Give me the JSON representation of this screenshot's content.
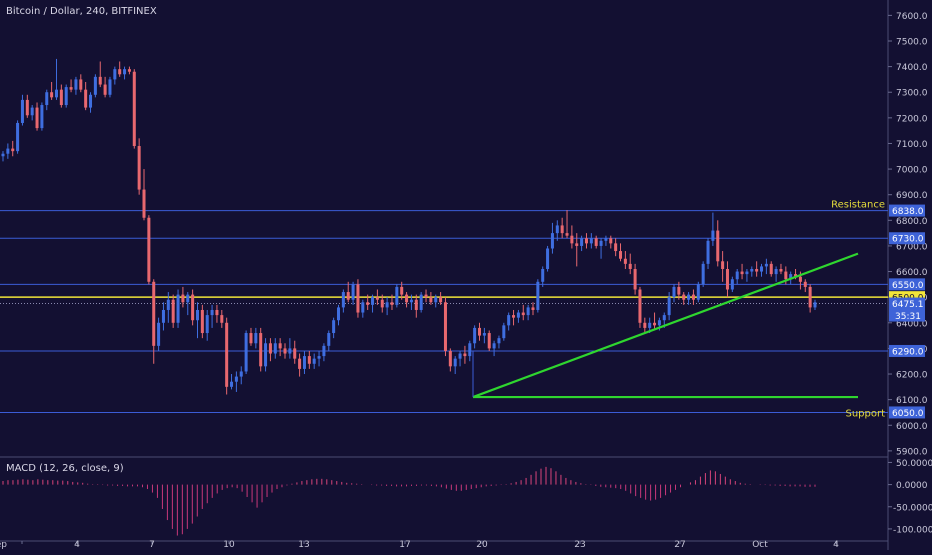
{
  "header": {
    "title": "Bitcoin / Dollar, 240, BITFINEX"
  },
  "macd": {
    "title": "MACD (12, 26, close, 9)"
  },
  "colors": {
    "background": "#131032",
    "grid_line": "#3b5cd6",
    "up": "#3f6ee0",
    "down": "#e8686f",
    "current_price_line": "#f2e53a",
    "trendline": "#2fd62f",
    "annotation_text": "#e6dd3c",
    "price_label_bg": "#3e63d8",
    "macd_pos": "#d8447a",
    "macd_neg": "#c8387a"
  },
  "chart_data": [
    {
      "type": "candlestick",
      "series": [
        {
          "name": "Bitcoin / Dollar"
        }
      ],
      "x_ticks": [
        "ep",
        "4",
        "7",
        "10",
        "13",
        "17",
        "20",
        "23",
        "27",
        "Oct",
        "4"
      ],
      "y_ticks": [
        "7600.0",
        "7500.0",
        "7400.0",
        "7300.0",
        "7200.0",
        "7100.0",
        "7000.0",
        "6900.0",
        "6800.0",
        "6700.0",
        "6600.0",
        "6500.0",
        "6400.0",
        "6300.0",
        "6200.0",
        "6100.0",
        "6000.0",
        "5900.0"
      ],
      "ylim": [
        5880,
        7660
      ],
      "horizontal_levels": [
        {
          "value": 6838.0,
          "label": "6838.0",
          "note": "Resistance"
        },
        {
          "value": 6730.0,
          "label": "6730.0"
        },
        {
          "value": 6550.0,
          "label": "6550.0"
        },
        {
          "value": 6290.0,
          "label": "6290.0"
        },
        {
          "value": 6050.0,
          "label": "6050.0",
          "note": "Support"
        }
      ],
      "highlight_level": {
        "value": 6500.0,
        "label": "6500.0"
      },
      "current_price": {
        "value": 6475.1,
        "label": "6475.1",
        "countdown": "35:31"
      },
      "trendlines": [
        {
          "from": [
            "Sep 19",
            6110
          ],
          "to": [
            "Oct 3",
            6670
          ]
        },
        {
          "from": [
            "Sep 19",
            6110
          ],
          "to": [
            "Oct 3",
            6110
          ]
        }
      ],
      "candles": [
        [
          7050,
          7070,
          7030,
          7060
        ],
        [
          7060,
          7100,
          7040,
          7080
        ],
        [
          7080,
          7110,
          7050,
          7070
        ],
        [
          7070,
          7190,
          7060,
          7180
        ],
        [
          7180,
          7290,
          7170,
          7270
        ],
        [
          7270,
          7290,
          7200,
          7210
        ],
        [
          7210,
          7250,
          7190,
          7240
        ],
        [
          7240,
          7260,
          7150,
          7160
        ],
        [
          7160,
          7260,
          7150,
          7250
        ],
        [
          7250,
          7310,
          7230,
          7300
        ],
        [
          7300,
          7340,
          7270,
          7280
        ],
        [
          7280,
          7430,
          7270,
          7310
        ],
        [
          7310,
          7330,
          7240,
          7250
        ],
        [
          7250,
          7330,
          7240,
          7320
        ],
        [
          7320,
          7350,
          7300,
          7310
        ],
        [
          7310,
          7360,
          7290,
          7350
        ],
        [
          7350,
          7370,
          7300,
          7310
        ],
        [
          7310,
          7340,
          7230,
          7240
        ],
        [
          7240,
          7300,
          7220,
          7290
        ],
        [
          7290,
          7370,
          7280,
          7360
        ],
        [
          7360,
          7420,
          7320,
          7330
        ],
        [
          7330,
          7360,
          7280,
          7290
        ],
        [
          7290,
          7360,
          7280,
          7350
        ],
        [
          7350,
          7400,
          7330,
          7390
        ],
        [
          7390,
          7420,
          7360,
          7370
        ],
        [
          7370,
          7400,
          7350,
          7390
        ],
        [
          7390,
          7400,
          7370,
          7380
        ],
        [
          7380,
          7390,
          7080,
          7090
        ],
        [
          7090,
          7120,
          6900,
          6920
        ],
        [
          6920,
          7000,
          6800,
          6810
        ],
        [
          6810,
          6820,
          6550,
          6560
        ],
        [
          6560,
          6570,
          6240,
          6310
        ],
        [
          6310,
          6420,
          6290,
          6400
        ],
        [
          6400,
          6480,
          6370,
          6450
        ],
        [
          6450,
          6520,
          6400,
          6490
        ],
        [
          6490,
          6510,
          6380,
          6400
        ],
        [
          6400,
          6530,
          6380,
          6510
        ],
        [
          6510,
          6540,
          6460,
          6480
        ],
        [
          6480,
          6520,
          6430,
          6510
        ],
        [
          6510,
          6530,
          6390,
          6410
        ],
        [
          6410,
          6480,
          6340,
          6450
        ],
        [
          6450,
          6470,
          6340,
          6360
        ],
        [
          6360,
          6450,
          6330,
          6430
        ],
        [
          6430,
          6470,
          6380,
          6450
        ],
        [
          6450,
          6470,
          6400,
          6430
        ],
        [
          6430,
          6450,
          6380,
          6400
        ],
        [
          6400,
          6420,
          6120,
          6150
        ],
        [
          6150,
          6200,
          6140,
          6170
        ],
        [
          6170,
          6210,
          6130,
          6190
        ],
        [
          6190,
          6230,
          6160,
          6210
        ],
        [
          6210,
          6370,
          6200,
          6360
        ],
        [
          6360,
          6380,
          6310,
          6320
        ],
        [
          6320,
          6380,
          6300,
          6360
        ],
        [
          6360,
          6380,
          6210,
          6230
        ],
        [
          6230,
          6340,
          6210,
          6320
        ],
        [
          6320,
          6340,
          6250,
          6280
        ],
        [
          6280,
          6340,
          6260,
          6320
        ],
        [
          6320,
          6340,
          6270,
          6300
        ],
        [
          6300,
          6320,
          6260,
          6280
        ],
        [
          6280,
          6340,
          6260,
          6300
        ],
        [
          6300,
          6330,
          6240,
          6260
        ],
        [
          6260,
          6280,
          6190,
          6220
        ],
        [
          6220,
          6290,
          6200,
          6270
        ],
        [
          6270,
          6290,
          6220,
          6240
        ],
        [
          6240,
          6280,
          6220,
          6260
        ],
        [
          6260,
          6290,
          6230,
          6270
        ],
        [
          6270,
          6320,
          6250,
          6310
        ],
        [
          6310,
          6370,
          6290,
          6360
        ],
        [
          6360,
          6420,
          6340,
          6410
        ],
        [
          6410,
          6470,
          6390,
          6460
        ],
        [
          6460,
          6530,
          6440,
          6520
        ],
        [
          6520,
          6560,
          6480,
          6490
        ],
        [
          6490,
          6560,
          6470,
          6550
        ],
        [
          6550,
          6570,
          6420,
          6440
        ],
        [
          6440,
          6490,
          6420,
          6480
        ],
        [
          6480,
          6510,
          6450,
          6470
        ],
        [
          6470,
          6510,
          6440,
          6500
        ],
        [
          6500,
          6530,
          6470,
          6490
        ],
        [
          6490,
          6510,
          6440,
          6460
        ],
        [
          6460,
          6500,
          6430,
          6480
        ],
        [
          6480,
          6510,
          6450,
          6470
        ],
        [
          6470,
          6550,
          6460,
          6540
        ],
        [
          6540,
          6560,
          6490,
          6510
        ],
        [
          6510,
          6520,
          6460,
          6480
        ],
        [
          6480,
          6510,
          6450,
          6490
        ],
        [
          6490,
          6510,
          6420,
          6450
        ],
        [
          6450,
          6520,
          6440,
          6510
        ],
        [
          6510,
          6530,
          6480,
          6500
        ],
        [
          6500,
          6520,
          6470,
          6480
        ],
        [
          6480,
          6510,
          6460,
          6500
        ],
        [
          6500,
          6520,
          6470,
          6480
        ],
        [
          6480,
          6500,
          6270,
          6290
        ],
        [
          6290,
          6300,
          6210,
          6230
        ],
        [
          6230,
          6270,
          6200,
          6260
        ],
        [
          6260,
          6290,
          6230,
          6280
        ],
        [
          6280,
          6310,
          6240,
          6270
        ],
        [
          6270,
          6330,
          6250,
          6320
        ],
        [
          6320,
          6390,
          6300,
          6380
        ],
        [
          6380,
          6400,
          6330,
          6350
        ],
        [
          6350,
          6380,
          6320,
          6360
        ],
        [
          6360,
          6370,
          6290,
          6300
        ],
        [
          6300,
          6330,
          6270,
          6320
        ],
        [
          6320,
          6350,
          6300,
          6340
        ],
        [
          6340,
          6400,
          6330,
          6390
        ],
        [
          6390,
          6440,
          6370,
          6430
        ],
        [
          6430,
          6450,
          6390,
          6420
        ],
        [
          6420,
          6450,
          6400,
          6440
        ],
        [
          6440,
          6470,
          6410,
          6430
        ],
        [
          6430,
          6470,
          6410,
          6460
        ],
        [
          6460,
          6480,
          6430,
          6450
        ],
        [
          6450,
          6570,
          6440,
          6560
        ],
        [
          6560,
          6620,
          6540,
          6610
        ],
        [
          6610,
          6700,
          6600,
          6690
        ],
        [
          6690,
          6790,
          6670,
          6750
        ],
        [
          6750,
          6800,
          6720,
          6780
        ],
        [
          6780,
          6810,
          6730,
          6750
        ],
        [
          6750,
          6840,
          6730,
          6740
        ],
        [
          6740,
          6780,
          6690,
          6710
        ],
        [
          6710,
          6750,
          6620,
          6700
        ],
        [
          6700,
          6740,
          6680,
          6730
        ],
        [
          6730,
          6750,
          6690,
          6710
        ],
        [
          6710,
          6750,
          6690,
          6730
        ],
        [
          6730,
          6740,
          6690,
          6700
        ],
        [
          6700,
          6730,
          6650,
          6720
        ],
        [
          6720,
          6740,
          6700,
          6730
        ],
        [
          6730,
          6740,
          6690,
          6710
        ],
        [
          6710,
          6730,
          6660,
          6680
        ],
        [
          6680,
          6710,
          6640,
          6650
        ],
        [
          6650,
          6680,
          6610,
          6630
        ],
        [
          6630,
          6670,
          6590,
          6610
        ],
        [
          6610,
          6630,
          6510,
          6530
        ],
        [
          6530,
          6540,
          6380,
          6400
        ],
        [
          6400,
          6420,
          6360,
          6380
        ],
        [
          6380,
          6420,
          6360,
          6400
        ],
        [
          6400,
          6440,
          6370,
          6390
        ],
        [
          6390,
          6420,
          6370,
          6410
        ],
        [
          6410,
          6440,
          6380,
          6430
        ],
        [
          6430,
          6520,
          6410,
          6500
        ],
        [
          6500,
          6550,
          6480,
          6540
        ],
        [
          6540,
          6560,
          6490,
          6510
        ],
        [
          6510,
          6520,
          6470,
          6490
        ],
        [
          6490,
          6520,
          6470,
          6510
        ],
        [
          6510,
          6530,
          6470,
          6490
        ],
        [
          6490,
          6560,
          6480,
          6550
        ],
        [
          6550,
          6640,
          6540,
          6630
        ],
        [
          6630,
          6730,
          6610,
          6720
        ],
        [
          6720,
          6830,
          6700,
          6760
        ],
        [
          6760,
          6800,
          6620,
          6640
        ],
        [
          6640,
          6680,
          6560,
          6610
        ],
        [
          6610,
          6640,
          6500,
          6530
        ],
        [
          6530,
          6580,
          6520,
          6570
        ],
        [
          6570,
          6610,
          6550,
          6600
        ],
        [
          6600,
          6630,
          6570,
          6590
        ],
        [
          6590,
          6610,
          6560,
          6600
        ],
        [
          6600,
          6620,
          6580,
          6610
        ],
        [
          6610,
          6640,
          6580,
          6600
        ],
        [
          6600,
          6630,
          6580,
          6620
        ],
        [
          6620,
          6650,
          6590,
          6630
        ],
        [
          6630,
          6640,
          6580,
          6590
        ],
        [
          6590,
          6620,
          6560,
          6610
        ],
        [
          6610,
          6630,
          6590,
          6600
        ],
        [
          6600,
          6620,
          6550,
          6570
        ],
        [
          6570,
          6600,
          6550,
          6590
        ],
        [
          6590,
          6610,
          6570,
          6580
        ],
        [
          6580,
          6600,
          6530,
          6560
        ],
        [
          6560,
          6570,
          6520,
          6540
        ],
        [
          6540,
          6550,
          6440,
          6460
        ],
        [
          6460,
          6490,
          6450,
          6480
        ]
      ]
    },
    {
      "type": "bar",
      "title": "MACD (12, 26, close, 9)",
      "y_ticks": [
        "50.0000",
        "0.0000",
        "-50.0000",
        "-100.0000"
      ],
      "ylim": [
        -125,
        60
      ],
      "values": [
        8,
        10,
        10,
        11,
        12,
        11,
        10,
        12,
        11,
        10,
        10,
        9,
        9,
        8,
        6,
        5,
        4,
        2,
        1,
        1,
        -1,
        -2,
        -2,
        -3,
        -3,
        -4,
        -4,
        -4,
        -6,
        -10,
        -18,
        -30,
        -55,
        -80,
        -100,
        -115,
        -112,
        -100,
        -88,
        -72,
        -55,
        -42,
        -30,
        -20,
        -12,
        -8,
        -6,
        -8,
        -16,
        -28,
        -40,
        -52,
        -40,
        -28,
        -18,
        -10,
        -6,
        -2,
        2,
        5,
        8,
        10,
        12,
        13,
        13,
        12,
        10,
        8,
        6,
        4,
        3,
        2,
        1,
        0,
        -1,
        -2,
        -2,
        -3,
        -3,
        -4,
        -4,
        -4,
        -3,
        -3,
        -2,
        -2,
        -3,
        -4,
        -6,
        -9,
        -12,
        -14,
        -14,
        -12,
        -10,
        -8,
        -6,
        -4,
        -3,
        -2,
        -1,
        1,
        3,
        6,
        10,
        15,
        22,
        30,
        36,
        40,
        37,
        30,
        22,
        15,
        10,
        6,
        3,
        1,
        -1,
        -3,
        -5,
        -6,
        -7,
        -8,
        -10,
        -14,
        -20,
        -26,
        -30,
        -34,
        -36,
        -34,
        -30,
        -24,
        -18,
        -12,
        -6,
        0,
        5,
        10,
        18,
        26,
        32,
        30,
        24,
        18,
        12,
        8,
        4,
        2,
        1,
        0,
        -1,
        -1,
        -2,
        -2,
        -3,
        -3,
        -4,
        -4,
        -4,
        -5,
        -5,
        -5
      ]
    }
  ]
}
